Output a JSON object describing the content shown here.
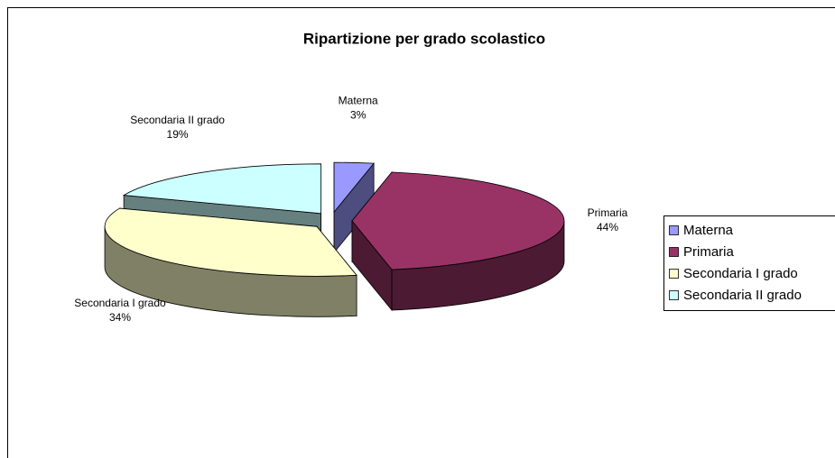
{
  "chart_data": {
    "type": "pie",
    "title": "Ripartizione per grado scolastico",
    "categories": [
      "Materna",
      "Primaria",
      "Secondaria I grado",
      "Secondaria II grado"
    ],
    "values": [
      3,
      44,
      34,
      19
    ],
    "value_labels": [
      "3%",
      "44%",
      "34%",
      "19%"
    ],
    "colors": [
      "#9999ff",
      "#993366",
      "#ffffcc",
      "#ccffff"
    ],
    "legend": "right"
  }
}
